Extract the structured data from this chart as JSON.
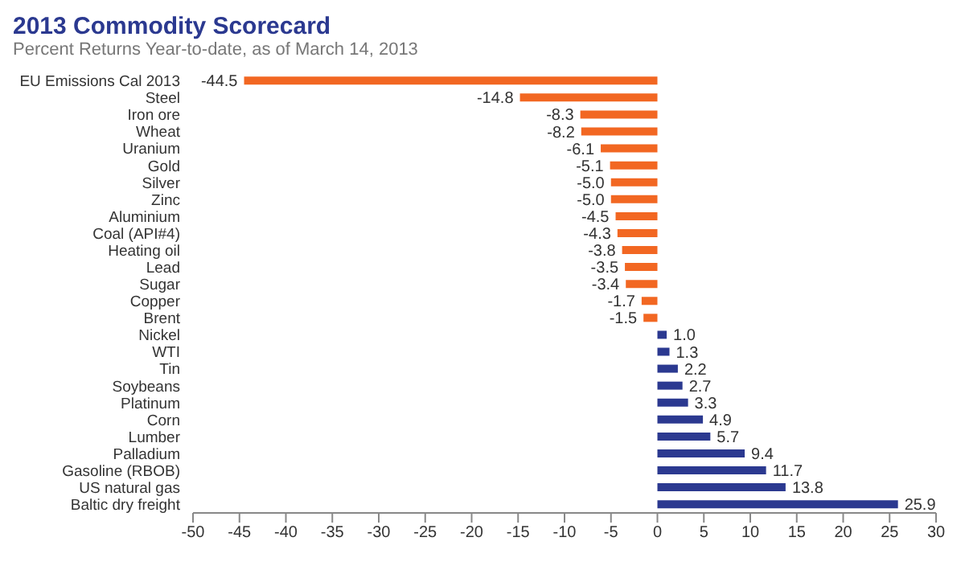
{
  "chart_data": {
    "type": "bar",
    "orientation": "horizontal",
    "title": "2013 Commodity Scorecard",
    "subtitle": "Percent Returns Year-to-date, as of March 14, 2013",
    "categories": [
      "EU Emissions Cal 2013",
      "Steel",
      "Iron ore",
      "Wheat",
      "Uranium",
      "Gold",
      "Silver",
      "Zinc",
      "Aluminium",
      "Coal (API#4)",
      "Heating oil",
      "Lead",
      "Sugar",
      "Copper",
      "Brent",
      "Nickel",
      "WTI",
      "Tin",
      "Soybeans",
      "Platinum",
      "Corn",
      "Lumber",
      "Palladium",
      "Gasoline (RBOB)",
      "US natural gas",
      "Baltic dry freight"
    ],
    "values": [
      -44.5,
      -14.8,
      -8.3,
      -8.2,
      -6.1,
      -5.1,
      -5.0,
      -5.0,
      -4.5,
      -4.3,
      -3.8,
      -3.5,
      -3.4,
      -1.7,
      -1.5,
      1.0,
      1.3,
      2.2,
      2.7,
      3.3,
      4.9,
      5.7,
      9.4,
      11.7,
      13.8,
      25.9
    ],
    "colors": [
      "#f26722",
      "#f26722",
      "#f26722",
      "#f26722",
      "#f26722",
      "#f26722",
      "#f26722",
      "#f26722",
      "#f26722",
      "#f26722",
      "#f26722",
      "#f26722",
      "#f26722",
      "#f26722",
      "#f26722",
      "#2b3990",
      "#2b3990",
      "#2b3990",
      "#2b3990",
      "#2b3990",
      "#2b3990",
      "#2b3990",
      "#2b3990",
      "#2b3990",
      "#2b3990",
      "#2b3990"
    ],
    "xlim": [
      -50,
      30
    ],
    "xticks": [
      -50,
      -45,
      -40,
      -35,
      -30,
      -25,
      -20,
      -15,
      -10,
      -5,
      0,
      5,
      10,
      15,
      20,
      25,
      30
    ],
    "value_labels": [
      "-44.5",
      "-14.8",
      "-8.3",
      "-8.2",
      "-6.1",
      "-5.1",
      "-5.0",
      "-5.0",
      "-4.5",
      "-4.3",
      "-3.8",
      "-3.5",
      "-3.4",
      "-1.7",
      "-1.5",
      "1.0",
      "1.3",
      "2.2",
      "2.7",
      "3.3",
      "4.9",
      "5.7",
      "9.4",
      "11.7",
      "13.8",
      "25.9"
    ]
  }
}
